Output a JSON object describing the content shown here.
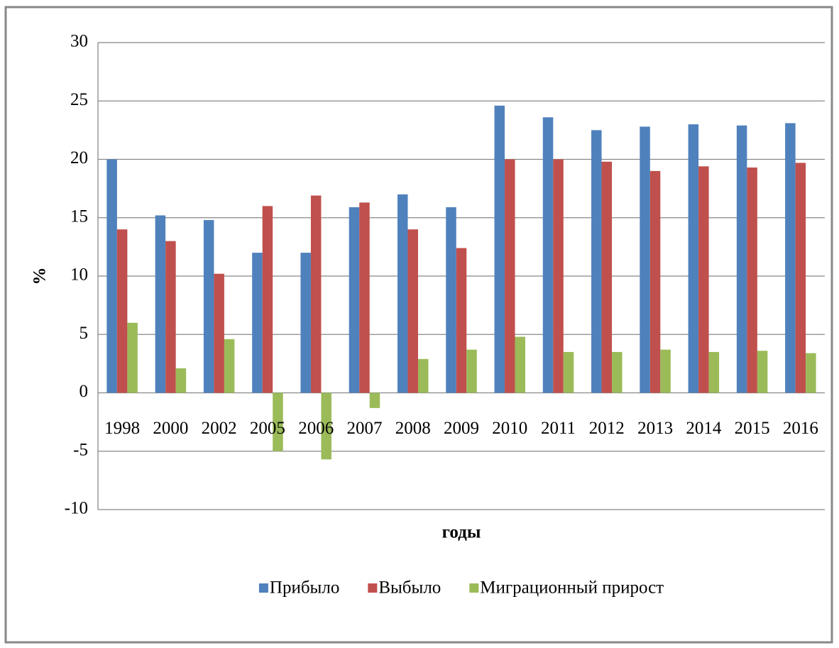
{
  "chart_data": {
    "type": "bar",
    "categories": [
      "1998",
      "2000",
      "2002",
      "2005",
      "2006",
      "2007",
      "2008",
      "2009",
      "2010",
      "2011",
      "2012",
      "2013",
      "2014",
      "2015",
      "2016"
    ],
    "series": [
      {
        "name": "Прибыло",
        "color": "#4f81bd",
        "values": [
          20,
          15.2,
          14.8,
          12,
          12,
          15.9,
          17,
          15.9,
          24.6,
          23.6,
          22.5,
          22.8,
          23,
          22.9,
          23.1
        ]
      },
      {
        "name": "Выбыло",
        "color": "#c0504d",
        "values": [
          14,
          13,
          10.2,
          16,
          16.9,
          16.3,
          14,
          12.4,
          20,
          20,
          19.8,
          19,
          19.4,
          19.3,
          19.7
        ]
      },
      {
        "name": "Миграционный прирост",
        "color": "#9bbb59",
        "values": [
          6,
          2.1,
          4.6,
          -5,
          -5.7,
          -1.3,
          2.9,
          3.7,
          4.8,
          3.5,
          3.5,
          3.7,
          3.5,
          3.6,
          3.4
        ]
      }
    ],
    "ylabel": "%",
    "xlabel": "годы",
    "ylim": [
      -10,
      30
    ],
    "yticks": [
      -10,
      -5,
      0,
      5,
      10,
      15,
      20,
      25,
      30
    ],
    "grid": true,
    "legend": "bottom"
  }
}
